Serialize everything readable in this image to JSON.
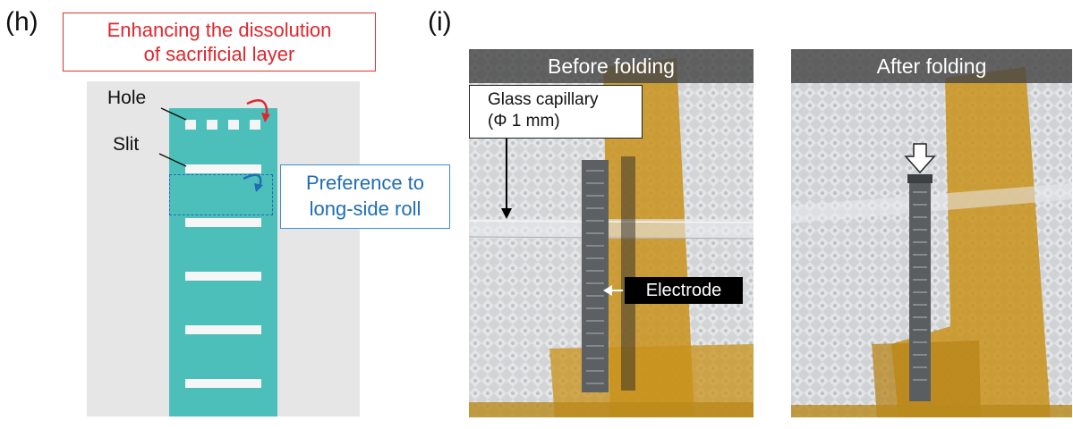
{
  "panel_h": {
    "label": "(h)",
    "title_line1": "Enhancing the dissolution",
    "title_line2": "of sacrificial layer",
    "hole_label": "Hole",
    "slit_label": "Slit",
    "note_line1": "Preference to",
    "note_line2": "long-side roll",
    "colors": {
      "strip": "#4dbfba",
      "red": "#e0262d",
      "blue": "#1f6db5",
      "background": "#e6e6e6"
    }
  },
  "panel_i": {
    "label": "(i)",
    "before": {
      "title": "Before folding",
      "capillary_line1": "Glass capillary",
      "capillary_line2": "(Φ 1 mm)",
      "electrode_label": "Electrode"
    },
    "after": {
      "title": "After folding"
    },
    "colors": {
      "tape": "#c9921a",
      "title_bar": "#464646"
    }
  }
}
